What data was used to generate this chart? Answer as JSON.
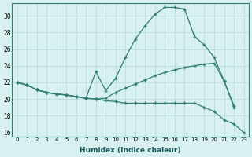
{
  "line1_x": [
    0,
    1,
    2,
    3,
    4,
    5,
    6,
    7,
    8,
    9,
    10,
    11,
    12,
    13,
    14,
    15,
    16,
    17,
    18,
    19,
    20,
    21,
    22,
    23
  ],
  "line1_y": [
    22.0,
    21.7,
    21.1,
    20.8,
    20.6,
    20.5,
    20.3,
    20.1,
    23.3,
    21.0,
    22.5,
    25.0,
    27.2,
    28.8,
    30.2,
    31.0,
    31.0,
    30.8,
    27.5,
    26.5,
    25.0,
    22.2,
    19.0,
    null
  ],
  "line2_x": [
    0,
    1,
    2,
    3,
    4,
    5,
    6,
    7,
    8,
    9,
    10,
    11,
    12,
    13,
    14,
    15,
    16,
    17,
    18,
    19,
    20,
    21,
    22,
    23
  ],
  "line2_y": [
    22.0,
    21.7,
    21.1,
    20.8,
    20.6,
    20.5,
    20.3,
    20.1,
    20.0,
    20.1,
    20.8,
    21.3,
    21.8,
    22.3,
    22.8,
    23.2,
    23.5,
    23.8,
    24.0,
    24.2,
    24.3,
    22.2,
    19.2,
    null
  ],
  "line3_x": [
    0,
    1,
    2,
    3,
    4,
    5,
    6,
    7,
    8,
    9,
    10,
    11,
    12,
    13,
    14,
    15,
    16,
    17,
    18,
    19,
    20,
    21,
    22,
    23
  ],
  "line3_y": [
    22.0,
    21.7,
    21.1,
    20.8,
    20.6,
    20.5,
    20.3,
    20.1,
    20.0,
    19.8,
    19.7,
    19.5,
    19.5,
    19.5,
    19.5,
    19.5,
    19.5,
    19.5,
    19.5,
    19.0,
    18.5,
    17.5,
    17.0,
    16.0
  ],
  "color": "#2e7d74",
  "bg_color": "#d8f0f0",
  "grid_color": "#b0d8d8",
  "xlabel": "Humidex (Indice chaleur)",
  "xlim": [
    -0.5,
    23.5
  ],
  "ylim": [
    15.5,
    31.5
  ],
  "yticks": [
    16,
    18,
    20,
    22,
    24,
    26,
    28,
    30
  ],
  "xticks": [
    0,
    1,
    2,
    3,
    4,
    5,
    6,
    7,
    8,
    9,
    10,
    11,
    12,
    13,
    14,
    15,
    16,
    17,
    18,
    19,
    20,
    21,
    22,
    23
  ]
}
